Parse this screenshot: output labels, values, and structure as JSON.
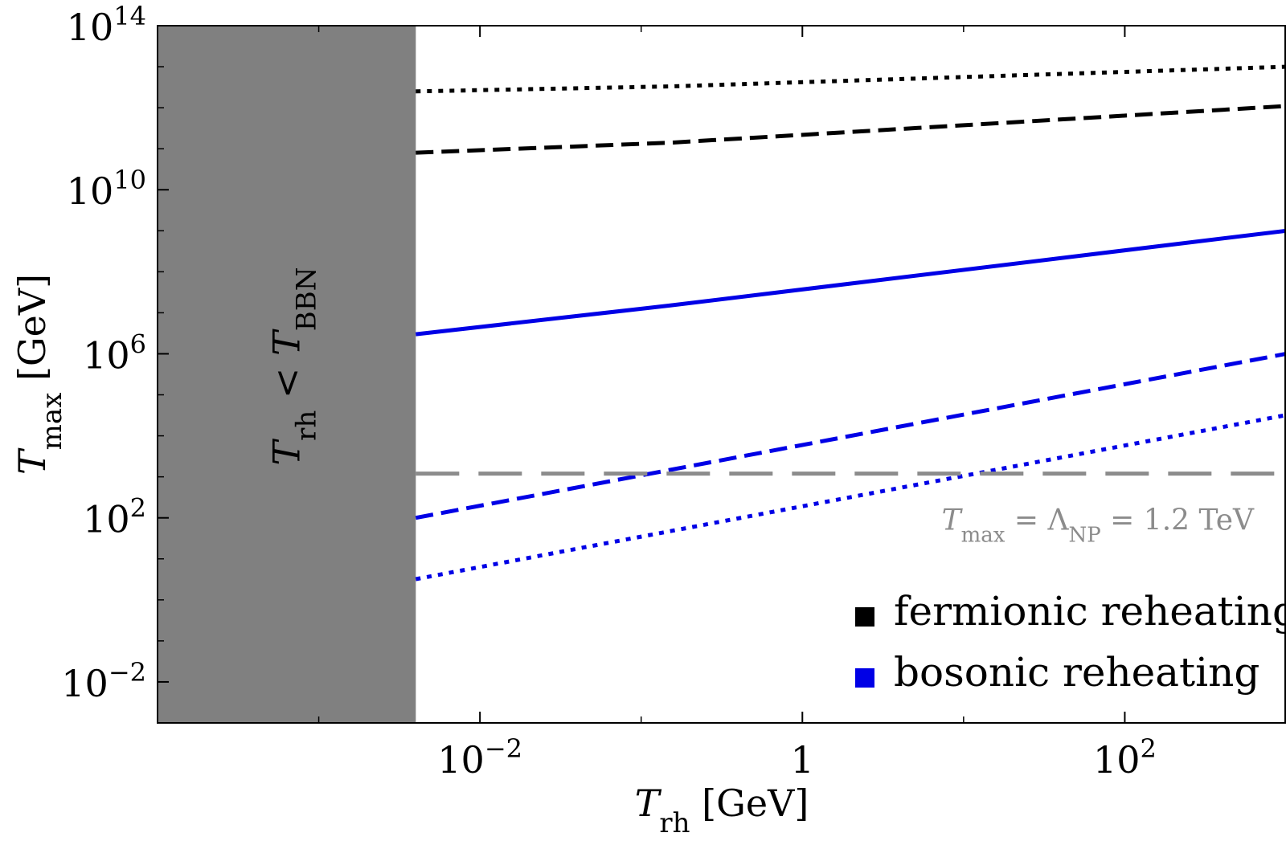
{
  "chart_data": {
    "type": "line",
    "x_scale": "log",
    "y_scale": "log",
    "xlim": [
      0.0001,
      1000
    ],
    "ylim": [
      0.001,
      100000000000000
    ],
    "xlabel": {
      "base": "T",
      "sub": "rh",
      "unit": " [GeV]"
    },
    "ylabel": {
      "base": "T",
      "sub": "max",
      "unit": " [GeV]"
    },
    "x_ticks": [
      {
        "value": 0.01,
        "base": "10",
        "exp": "−2"
      },
      {
        "value": 1,
        "base": "1",
        "exp": ""
      },
      {
        "value": 100,
        "base": "10",
        "exp": "2"
      }
    ],
    "y_ticks": [
      {
        "value": 0.01,
        "base": "10",
        "exp": "−2"
      },
      {
        "value": 100,
        "base": "10",
        "exp": "2"
      },
      {
        "value": 1000000,
        "base": "10",
        "exp": "6"
      },
      {
        "value": 10000000000,
        "base": "10",
        "exp": "10"
      },
      {
        "value": 100000000000000,
        "base": "10",
        "exp": "14"
      }
    ],
    "excluded_region": {
      "x_max": 0.004,
      "color": "#808080",
      "label": {
        "base": "T",
        "sub": "rh",
        "mid": " < ",
        "base2": "T",
        "sub2": "BBN"
      }
    },
    "reference_line": {
      "y": 1200,
      "color": "#8c8c8c",
      "style": "long-dash",
      "label": {
        "base": "T",
        "sub": "max",
        "mid": " = Λ",
        "sub2": "NP",
        "rest": " = 1.2 TeV"
      }
    },
    "series": [
      {
        "group": "fermionic",
        "color": "#000000",
        "style": "dotted",
        "points": [
          [
            0.004,
            2500000000000
          ],
          [
            0.15,
            3300000000000
          ],
          [
            1000,
            10000000000000
          ]
        ]
      },
      {
        "group": "fermionic",
        "color": "#000000",
        "style": "dashed",
        "points": [
          [
            0.004,
            80000000000
          ],
          [
            0.15,
            140000000000
          ],
          [
            1000,
            1100000000000
          ]
        ]
      },
      {
        "group": "bosonic",
        "color": "#0000e6",
        "style": "solid",
        "points": [
          [
            0.004,
            3000000
          ],
          [
            0.15,
            15000000
          ],
          [
            1000,
            1000000000
          ]
        ]
      },
      {
        "group": "bosonic",
        "color": "#0000e6",
        "style": "dashed",
        "points": [
          [
            0.004,
            100
          ],
          [
            1000,
            1000000
          ]
        ]
      },
      {
        "group": "bosonic",
        "color": "#0000e6",
        "style": "dotted",
        "points": [
          [
            0.004,
            3.2
          ],
          [
            1000,
            32000
          ]
        ]
      }
    ],
    "legend": {
      "placement": "bottom-right",
      "entries": [
        {
          "label": "fermionic reheating",
          "color": "#000000"
        },
        {
          "label": "bosonic reheating",
          "color": "#0000e6"
        }
      ]
    }
  }
}
